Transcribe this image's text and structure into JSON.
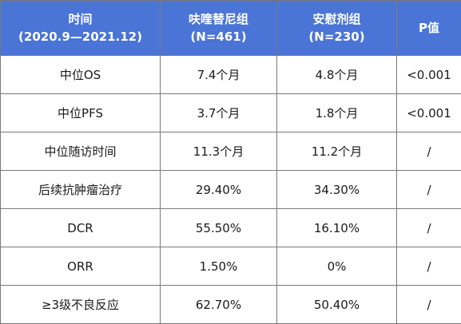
{
  "header": [
    {
      "line1": "时间",
      "line2": "(2020.9—2021.12)"
    },
    {
      "line1": "呋喹替尼组",
      "line2": "(N=461)"
    },
    {
      "line1": "安慰剂组",
      "line2": "(N=230)"
    },
    {
      "line1": "P值",
      "line2": ""
    }
  ],
  "rows": [
    [
      "中位OS",
      "7.4个月",
      "4.8个月",
      "<0.001"
    ],
    [
      "中位PFS",
      "3.7个月",
      "1.8个月",
      "<0.001"
    ],
    [
      "中位随访时间",
      "11.3个月",
      "11.2个月",
      "/"
    ],
    [
      "后续抗肿瘤治疗",
      "29.40%",
      "34.30%",
      "/"
    ],
    [
      "DCR",
      "55.50%",
      "16.10%",
      "/"
    ],
    [
      "ORR",
      "1.50%",
      "0%",
      "/"
    ],
    [
      "≥3级不良反应",
      "62.70%",
      "50.40%",
      "/"
    ]
  ],
  "colors": {
    "header_bg": "#4a74d6",
    "header_text": "#ffffff",
    "border": "#7a7a7a"
  }
}
